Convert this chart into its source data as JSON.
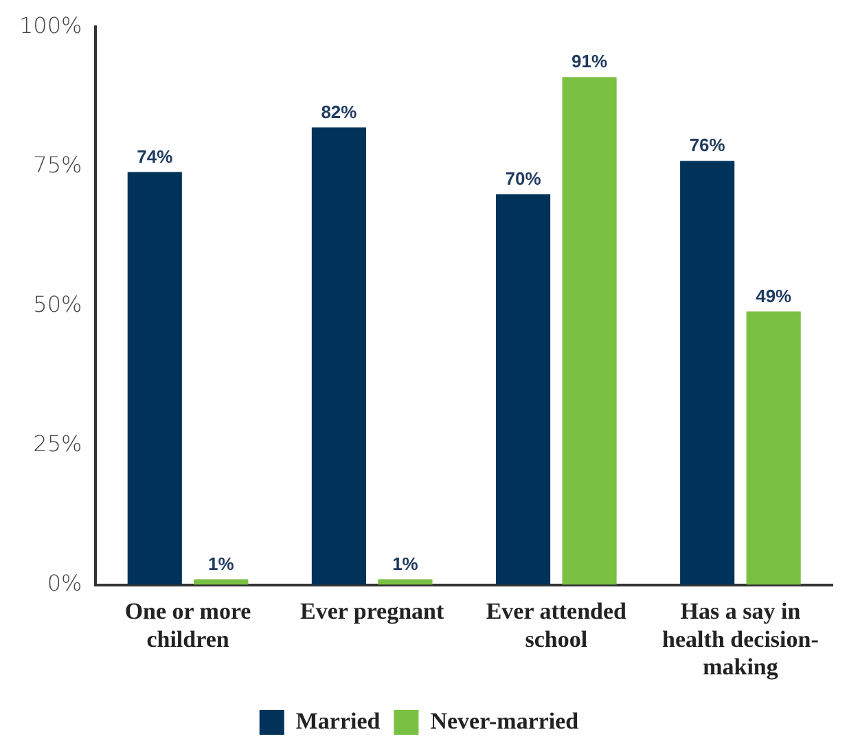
{
  "chart_data": {
    "type": "bar",
    "categories": [
      "One or more children",
      "Ever pregnant",
      "Ever attended school",
      "Has a say in health decision-making"
    ],
    "series": [
      {
        "name": "Married",
        "color": "#00325a",
        "values": [
          74,
          82,
          70,
          76
        ],
        "value_labels": [
          "74%",
          "82%",
          "70%",
          "76%"
        ]
      },
      {
        "name": "Never-married",
        "color": "#7ac143",
        "values": [
          1,
          1,
          91,
          49
        ],
        "value_labels": [
          "1%",
          "1%",
          "91%",
          "49%"
        ]
      }
    ],
    "ylim": [
      0,
      100
    ],
    "yticks": [
      {
        "value": 0,
        "label": "0%"
      },
      {
        "value": 25,
        "label": "25%"
      },
      {
        "value": 50,
        "label": "50%"
      },
      {
        "value": 75,
        "label": "75%"
      },
      {
        "value": 100,
        "label": "100%"
      }
    ],
    "grid": false,
    "legend": "bottom"
  }
}
